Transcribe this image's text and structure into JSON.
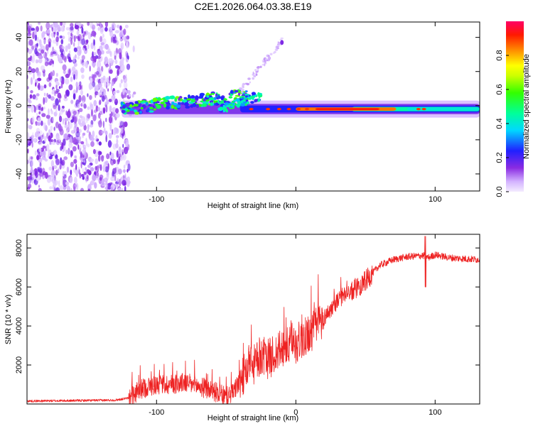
{
  "title": "C2E1.2026.064.03.38.E19",
  "chart_data": [
    {
      "type": "heatmap",
      "name": "spectrogram",
      "xlabel": "Height of straight line (km)",
      "ylabel": "Frequency (Hz)",
      "xlim": [
        -193,
        132
      ],
      "ylim": [
        -50,
        49
      ],
      "x_ticks": [
        -100,
        0,
        100
      ],
      "x_tick_labels": [
        "-100",
        "",
        "100"
      ],
      "y_ticks": [
        -40,
        -20,
        0,
        20,
        40
      ],
      "y_tick_labels": [
        "-40",
        "-20",
        "0",
        "20",
        "40"
      ],
      "noise_region_end_km": -120,
      "carrier_frequency_hz": -2,
      "colorbar": {
        "label": "Normalized spectral amplitude",
        "range": [
          0,
          1
        ],
        "ticks": [
          0.0,
          0.2,
          0.4,
          0.6,
          0.8
        ],
        "tick_labels": [
          "0.0",
          "0.2",
          "0.4",
          "0.6",
          "0.8"
        ]
      }
    },
    {
      "type": "line",
      "name": "snr",
      "xlabel": "Height of straight line (km)",
      "ylabel": "SNR (10 * v/v)",
      "xlim": [
        -193,
        132
      ],
      "ylim": [
        0,
        8700
      ],
      "x_ticks": [
        -100,
        0,
        100
      ],
      "x_tick_labels": [
        "-100",
        "0",
        "100"
      ],
      "y_ticks": [
        2000,
        4000,
        6000,
        8000
      ],
      "y_tick_labels": [
        "2000",
        "4000",
        "6000",
        "8000"
      ],
      "color": "#ee2222",
      "series": [
        {
          "name": "SNR",
          "x": [
            -193,
            -150,
            -130,
            -120,
            -110,
            -100,
            -90,
            -80,
            -70,
            -60,
            -50,
            -45,
            -40,
            -35,
            -30,
            -25,
            -20,
            -10,
            0,
            10,
            20,
            30,
            40,
            50,
            60,
            70,
            80,
            90,
            93,
            95,
            100,
            110,
            120,
            132
          ],
          "y": [
            150,
            180,
            200,
            300,
            800,
            1000,
            1000,
            1100,
            900,
            700,
            350,
            600,
            1200,
            1800,
            2000,
            2500,
            2300,
            2800,
            3100,
            3600,
            4400,
            5300,
            5800,
            6300,
            7100,
            7400,
            7550,
            7600,
            7600,
            7500,
            7650,
            7500,
            7450,
            7400
          ]
        }
      ]
    }
  ]
}
